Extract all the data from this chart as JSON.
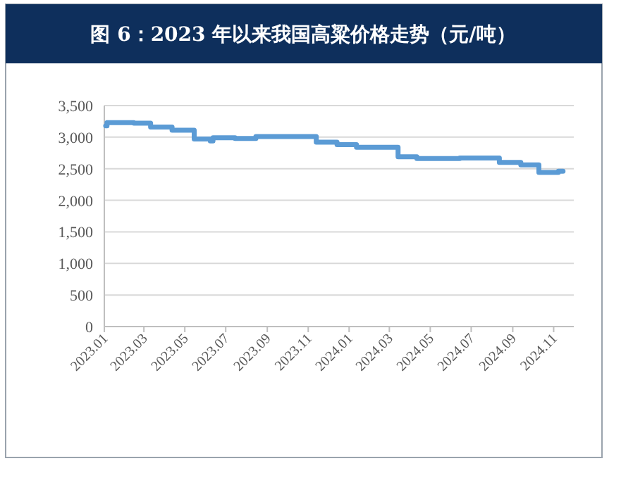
{
  "chart_data": {
    "type": "step",
    "title": "图 6：2023 年以来我国高粱价格走势（元/吨）",
    "x": [
      "2023-01-03",
      "2023-01-05",
      "2023-02-14",
      "2023-03-11",
      "2023-04-12",
      "2023-05-15",
      "2023-06-08",
      "2023-06-12",
      "2023-07-15",
      "2023-08-15",
      "2023-11-13",
      "2023-12-14",
      "2024-01-12",
      "2024-03-14",
      "2024-04-11",
      "2024-06-14",
      "2024-08-12",
      "2024-09-13",
      "2024-10-10",
      "2024-11-08",
      "2024-11-15"
    ],
    "series": [
      {
        "color": "#5b9bd5",
        "values": [
          3180,
          3230,
          3220,
          3160,
          3110,
          2970,
          2940,
          2990,
          2980,
          3010,
          2920,
          2880,
          2840,
          2690,
          2660,
          2670,
          2600,
          2560,
          2440,
          2460,
          2460
        ]
      }
    ],
    "xlim": [
      "2023-01",
      "2024-12"
    ],
    "xticks": [
      {
        "value": "2023-01",
        "label": "2023.01"
      },
      {
        "value": "2023-03",
        "label": "2023.03"
      },
      {
        "value": "2023-05",
        "label": "2023.05"
      },
      {
        "value": "2023-07",
        "label": "2023.07"
      },
      {
        "value": "2023-09",
        "label": "2023.09"
      },
      {
        "value": "2023-11",
        "label": "2023.11"
      },
      {
        "value": "2024-01",
        "label": "2024.01"
      },
      {
        "value": "2024-03",
        "label": "2024.03"
      },
      {
        "value": "2024-05",
        "label": "2024.05"
      },
      {
        "value": "2024-07",
        "label": "2024.07"
      },
      {
        "value": "2024-09",
        "label": "2024.09"
      },
      {
        "value": "2024-11",
        "label": "2024.11"
      }
    ],
    "ylim": [
      0,
      3500
    ],
    "yticks": [
      0,
      500,
      {
        "value": 1000,
        "label": "1,000"
      },
      {
        "value": 1500,
        "label": "1,500"
      },
      {
        "value": 2000,
        "label": "2,000"
      },
      {
        "value": 2500,
        "label": "2,500"
      },
      {
        "value": 3000,
        "label": "3,000"
      },
      {
        "value": 3500,
        "label": "3,500"
      }
    ],
    "grid": "y",
    "marker": "none",
    "line_style": "solid"
  }
}
